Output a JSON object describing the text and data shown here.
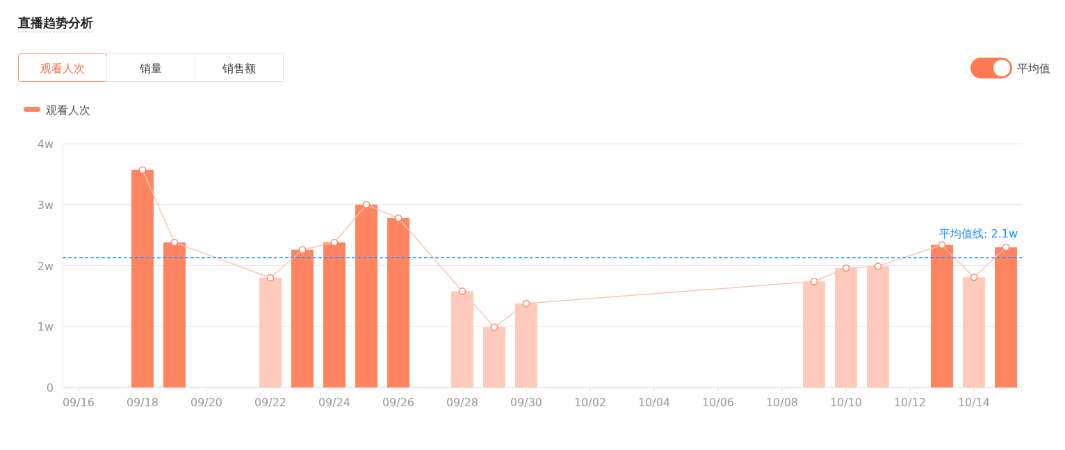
{
  "chart_data": {
    "type": "bar",
    "title": "直播趋势分析",
    "categories": [
      "09/16",
      null,
      "09/18",
      null,
      "09/20",
      null,
      "09/22",
      null,
      "09/24",
      null,
      "09/26",
      null,
      "09/28",
      null,
      "09/30",
      null,
      "10/02",
      null,
      "10/04",
      null,
      "10/06",
      null,
      "10/08",
      null,
      "10/10",
      null,
      "10/12",
      null,
      "10/14",
      null
    ],
    "series": [
      {
        "name": "观看人次",
        "color": "#ff8562",
        "values": [
          null,
          null,
          3.57,
          2.38,
          null,
          null,
          1.8,
          2.26,
          2.38,
          3.0,
          2.78,
          null,
          1.58,
          0.99,
          1.38,
          null,
          null,
          null,
          null,
          null,
          null,
          null,
          null,
          1.74,
          1.96,
          1.99,
          null,
          2.34,
          1.81,
          2.3
        ],
        "colors": [
          null,
          null,
          "#ff8562",
          "#ff8562",
          null,
          null,
          "#ffcabb",
          "#ff8562",
          "#ff8562",
          "#ff8562",
          "#ff8562",
          null,
          "#ffcabb",
          "#ffcabb",
          "#ffcabb",
          null,
          null,
          null,
          null,
          null,
          null,
          null,
          null,
          "#ffcabb",
          "#ffcabb",
          "#ffcabb",
          null,
          "#ff8562",
          "#ffcabb",
          "#ff8562"
        ]
      },
      {
        "type": "line",
        "color": "#fdc5b5",
        "marker": "circle",
        "values": [
          null,
          null,
          3.57,
          2.38,
          null,
          null,
          1.8,
          2.26,
          2.38,
          3.0,
          2.78,
          null,
          1.58,
          0.99,
          1.38,
          null,
          null,
          null,
          null,
          null,
          null,
          null,
          null,
          1.74,
          1.96,
          1.99,
          null,
          2.34,
          1.81,
          2.3
        ]
      }
    ],
    "ylim": [
      0,
      4
    ],
    "yticks": [
      0,
      {
        "value": 1,
        "label": "1w"
      },
      {
        "value": 2,
        "label": "2w"
      },
      {
        "value": 3,
        "label": "3w"
      },
      {
        "value": 4,
        "label": "4w"
      }
    ],
    "grid": "y",
    "legend": "top left",
    "ref_lines": [
      {
        "axis": "y",
        "value": 2.13,
        "label": "平均值线: 2.1w",
        "color": "#1890ff",
        "line_style": "dashed"
      }
    ],
    "annotations": [
      "观看人次",
      "销量",
      "销售额",
      "平均值"
    ]
  }
}
